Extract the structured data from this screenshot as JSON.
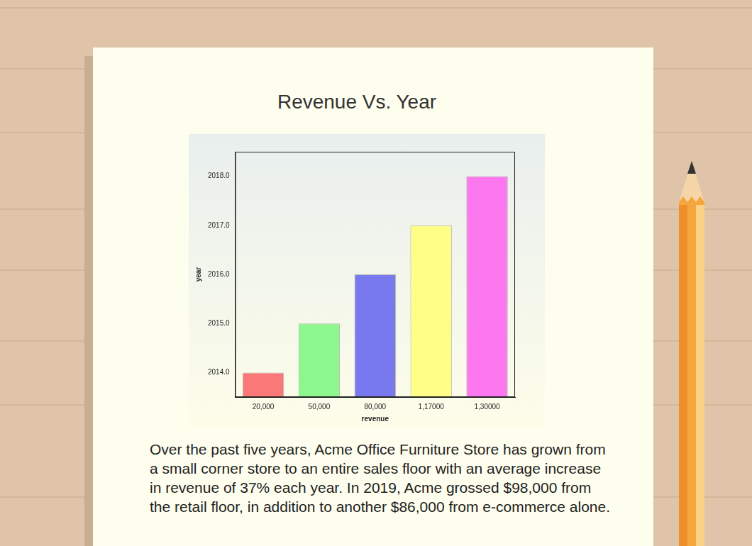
{
  "chart_data": {
    "type": "bar",
    "title": "Revenue Vs. Year",
    "x_label": "revenue",
    "y_label": "year",
    "categories": [
      "20,000",
      "50,000",
      "80,000",
      "1,17000",
      "1,30000"
    ],
    "values": [
      2014,
      2015,
      2016,
      2017,
      2018
    ],
    "colors": [
      "#fa7878",
      "#8cf78c",
      "#7878ef",
      "#ffff88",
      "#fd78ee"
    ],
    "ylim": [
      2013.5,
      2018.5
    ],
    "yticks": [
      {
        "value": 2014,
        "label": "2014.0"
      },
      {
        "value": 2015,
        "label": "2015.0"
      },
      {
        "value": 2016,
        "label": "2016.0"
      },
      {
        "value": 2017,
        "label": "2017.0"
      },
      {
        "value": 2018,
        "label": "2018.0"
      }
    ],
    "grid": false
  },
  "text": {
    "paragraph": "Over the past five years, Acme Office Furniture Store has grown from a small corner store to an entire sales floor with an average increase in revenue of 37% each year. In 2019, Acme grossed $98,000 from the retail floor, in addition to another $86,000 from e-commerce alone."
  }
}
